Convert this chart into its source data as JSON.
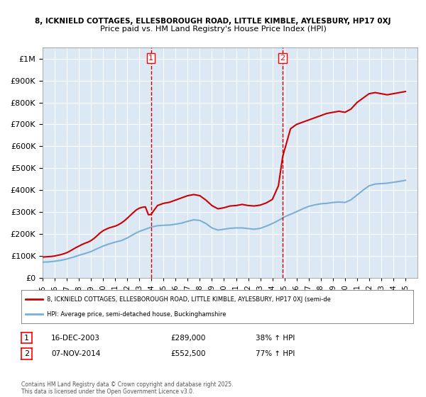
{
  "title1": "8, ICKNIELD COTTAGES, ELLESBOROUGH ROAD, LITTLE KIMBLE, AYLESBURY, HP17 0XJ",
  "title2": "Price paid vs. HM Land Registry's House Price Index (HPI)",
  "ylabel_ticks": [
    "£0",
    "£100K",
    "£200K",
    "£300K",
    "£400K",
    "£500K",
    "£600K",
    "£700K",
    "£800K",
    "£900K",
    "£1M"
  ],
  "ytick_values": [
    0,
    100000,
    200000,
    300000,
    400000,
    500000,
    600000,
    700000,
    800000,
    900000,
    1000000
  ],
  "ylim": [
    0,
    1050000
  ],
  "xlim_start": 1995,
  "xlim_end": 2026,
  "background_color": "#ffffff",
  "plot_bg_color": "#dce9f5",
  "grid_color": "#ffffff",
  "red_line_color": "#cc0000",
  "blue_line_color": "#7bafd4",
  "vline_color": "#cc0000",
  "vline_style": "--",
  "marker1_x": 2003.96,
  "marker1_y": 289000,
  "marker2_x": 2014.85,
  "marker2_y": 552500,
  "legend_label1": "8, ICKNIELD COTTAGES, ELLESBOROUGH ROAD, LITTLE KIMBLE, AYLESBURY, HP17 0XJ (semi-de",
  "legend_label2": "HPI: Average price, semi-detached house, Buckinghamshire",
  "annotation1_box": "1",
  "annotation1_date": "16-DEC-2003",
  "annotation1_price": "£289,000",
  "annotation1_hpi": "38% ↑ HPI",
  "annotation2_box": "2",
  "annotation2_date": "07-NOV-2014",
  "annotation2_price": "£552,500",
  "annotation2_hpi": "77% ↑ HPI",
  "footer": "Contains HM Land Registry data © Crown copyright and database right 2025.\nThis data is licensed under the Open Government Licence v3.0.",
  "red_line_data": {
    "years": [
      1995.0,
      1995.25,
      1995.5,
      1995.75,
      1996.0,
      1996.25,
      1996.5,
      1996.75,
      1997.0,
      1997.25,
      1997.5,
      1997.75,
      1998.0,
      1998.25,
      1998.5,
      1998.75,
      1999.0,
      1999.25,
      1999.5,
      1999.75,
      2000.0,
      2000.25,
      2000.5,
      2000.75,
      2001.0,
      2001.25,
      2001.5,
      2001.75,
      2002.0,
      2002.25,
      2002.5,
      2002.75,
      2003.0,
      2003.25,
      2003.5,
      2003.75,
      2003.96,
      2004.5,
      2005.0,
      2005.5,
      2006.0,
      2006.5,
      2007.0,
      2007.5,
      2008.0,
      2008.5,
      2009.0,
      2009.5,
      2010.0,
      2010.5,
      2011.0,
      2011.5,
      2012.0,
      2012.5,
      2013.0,
      2013.5,
      2014.0,
      2014.5,
      2014.85,
      2015.5,
      2016.0,
      2016.5,
      2017.0,
      2017.5,
      2018.0,
      2018.5,
      2019.0,
      2019.5,
      2020.0,
      2020.5,
      2021.0,
      2021.5,
      2022.0,
      2022.5,
      2023.0,
      2023.5,
      2024.0,
      2024.5,
      2025.0
    ],
    "values": [
      95000,
      96000,
      97000,
      98000,
      100000,
      103000,
      106000,
      110000,
      115000,
      122000,
      130000,
      138000,
      145000,
      152000,
      158000,
      163000,
      170000,
      180000,
      192000,
      205000,
      215000,
      222000,
      228000,
      232000,
      236000,
      242000,
      250000,
      260000,
      272000,
      285000,
      298000,
      310000,
      318000,
      322000,
      324000,
      288000,
      289000,
      330000,
      340000,
      345000,
      355000,
      365000,
      375000,
      380000,
      375000,
      355000,
      330000,
      315000,
      320000,
      328000,
      330000,
      335000,
      330000,
      328000,
      332000,
      342000,
      358000,
      420000,
      552500,
      680000,
      700000,
      710000,
      720000,
      730000,
      740000,
      750000,
      755000,
      760000,
      755000,
      770000,
      800000,
      820000,
      840000,
      845000,
      840000,
      835000,
      840000,
      845000,
      850000
    ]
  },
  "blue_line_data": {
    "years": [
      1995.0,
      1995.5,
      1996.0,
      1996.5,
      1997.0,
      1997.5,
      1998.0,
      1998.5,
      1999.0,
      1999.5,
      2000.0,
      2000.5,
      2001.0,
      2001.5,
      2002.0,
      2002.5,
      2003.0,
      2003.5,
      2004.0,
      2004.5,
      2005.0,
      2005.5,
      2006.0,
      2006.5,
      2007.0,
      2007.5,
      2008.0,
      2008.5,
      2009.0,
      2009.5,
      2010.0,
      2010.5,
      2011.0,
      2011.5,
      2012.0,
      2012.5,
      2013.0,
      2013.5,
      2014.0,
      2014.5,
      2015.0,
      2015.5,
      2016.0,
      2016.5,
      2017.0,
      2017.5,
      2018.0,
      2018.5,
      2019.0,
      2019.5,
      2020.0,
      2020.5,
      2021.0,
      2021.5,
      2022.0,
      2022.5,
      2023.0,
      2023.5,
      2024.0,
      2024.5,
      2025.0
    ],
    "values": [
      72000,
      73000,
      76000,
      80000,
      86000,
      94000,
      103000,
      111000,
      120000,
      133000,
      145000,
      155000,
      163000,
      170000,
      182000,
      198000,
      212000,
      222000,
      232000,
      238000,
      240000,
      241000,
      245000,
      250000,
      258000,
      265000,
      262000,
      248000,
      228000,
      218000,
      222000,
      226000,
      228000,
      228000,
      225000,
      222000,
      226000,
      236000,
      248000,
      262000,
      278000,
      290000,
      302000,
      315000,
      326000,
      333000,
      338000,
      340000,
      344000,
      346000,
      344000,
      356000,
      378000,
      400000,
      420000,
      428000,
      430000,
      432000,
      436000,
      440000,
      445000
    ]
  }
}
